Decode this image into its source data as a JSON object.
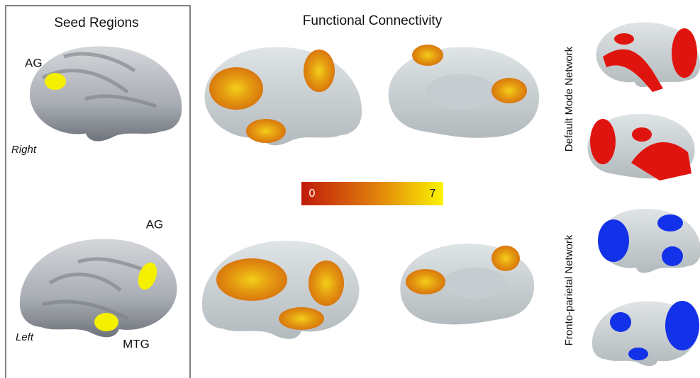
{
  "panels": {
    "seed": {
      "title": "Seed Regions",
      "top": {
        "label": "AG",
        "hemisphere": "Right"
      },
      "bottom": {
        "label_ag": "AG",
        "label_mtg": "MTG",
        "hemisphere": "Left"
      }
    },
    "connectivity": {
      "title": "Functional Connectivity",
      "colorbar": {
        "min": "0",
        "max": "7"
      }
    },
    "networks": {
      "dmn": "Default Mode Network",
      "fpn": "Fronto-parietal Network"
    }
  }
}
